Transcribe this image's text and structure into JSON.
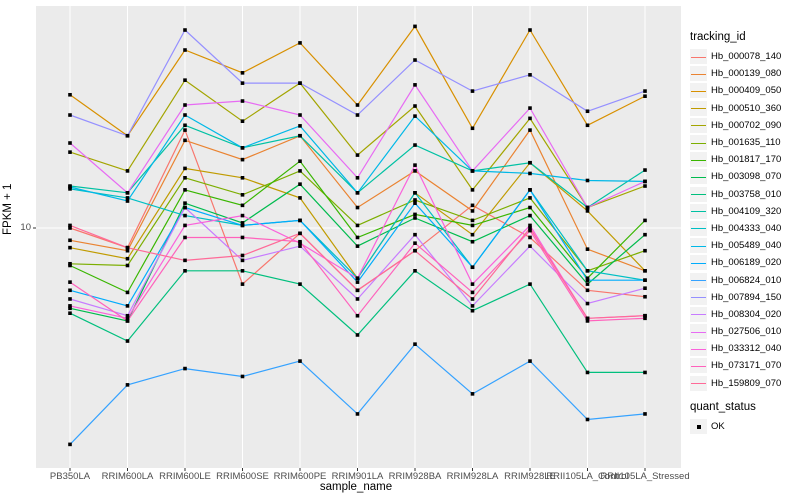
{
  "chart_data": {
    "type": "line",
    "title": "",
    "xlabel": "sample_name",
    "ylabel": "FPKM + 1",
    "y_scale": "log10",
    "y_tick_labels": [
      "10"
    ],
    "ylim": [
      1.6,
      55
    ],
    "grid": true,
    "panel_bg": "#EBEBEB",
    "grid_color": "#FFFFFF",
    "marker": "black-square",
    "marker_color": "#000000",
    "legend_position": "right",
    "categories": [
      "PB350LA",
      "RRIM600LA",
      "RRIM600LE",
      "RRIM600SE",
      "RRIM600PE",
      "RRIM901LA",
      "RRIM928BA",
      "RRIM928LA",
      "RRIM928LE",
      "RRII105LA_Control",
      "RRII105LA_Stressed"
    ],
    "legend": {
      "color_title": "tracking_id",
      "shape_title": "quant_status",
      "shape_items": [
        {
          "label": "OK",
          "marker": "black-square"
        }
      ]
    },
    "series": [
      {
        "name": "Hb_000078_140",
        "color": "#F8766D",
        "values": [
          10.0,
          8.6,
          21.2,
          6.5,
          9.6,
          6.2,
          8.4,
          11.9,
          9.3,
          6.2,
          5.9
        ]
      },
      {
        "name": "Hb_000139_080",
        "color": "#EA8331",
        "values": [
          9.1,
          8.4,
          19.6,
          16.9,
          20.3,
          11.7,
          15.5,
          11.4,
          21.2,
          8.5,
          7.2
        ]
      },
      {
        "name": "Hb_000409_050",
        "color": "#D89000",
        "values": [
          27.8,
          20.3,
          39.2,
          32.9,
          41.4,
          25.7,
          47.0,
          21.5,
          45.7,
          22.0,
          27.5
        ]
      },
      {
        "name": "Hb_000510_360",
        "color": "#C09B00",
        "values": [
          8.6,
          7.9,
          15.8,
          14.7,
          12.6,
          6.8,
          13.1,
          9.5,
          16.5,
          11.4,
          7.2
        ]
      },
      {
        "name": "Hb_000702_090",
        "color": "#A3A500",
        "values": [
          17.9,
          15.5,
          31.1,
          22.7,
          30.4,
          17.5,
          25.5,
          13.4,
          23.2,
          11.7,
          13.8
        ]
      },
      {
        "name": "Hb_001635_110",
        "color": "#7CAE00",
        "values": [
          7.6,
          7.5,
          14.7,
          12.9,
          15.5,
          10.2,
          12.4,
          10.6,
          12.6,
          7.2,
          8.4
        ]
      },
      {
        "name": "Hb_001817_170",
        "color": "#39B600",
        "values": [
          7.5,
          6.1,
          13.4,
          11.9,
          16.7,
          9.3,
          11.1,
          10.2,
          11.7,
          6.8,
          10.6
        ]
      },
      {
        "name": "Hb_003098_070",
        "color": "#00BB4E",
        "values": [
          5.4,
          4.9,
          12.1,
          10.4,
          14.0,
          8.7,
          10.8,
          9.0,
          11.0,
          6.5,
          9.5
        ]
      },
      {
        "name": "Hb_003758_010",
        "color": "#00BF7D",
        "values": [
          5.2,
          4.2,
          7.2,
          7.2,
          6.5,
          4.4,
          7.2,
          5.3,
          6.5,
          3.3,
          3.3
        ]
      },
      {
        "name": "Hb_004109_320",
        "color": "#00C1A3",
        "values": [
          13.8,
          13.1,
          22.0,
          18.5,
          20.3,
          13.1,
          18.9,
          15.5,
          16.5,
          11.7,
          15.6
        ]
      },
      {
        "name": "Hb_004333_040",
        "color": "#00BFC4",
        "values": [
          13.5,
          12.6,
          11.0,
          10.2,
          10.6,
          6.8,
          13.1,
          7.4,
          13.4,
          7.2,
          6.7
        ]
      },
      {
        "name": "Hb_005489_040",
        "color": "#00B8E7",
        "values": [
          13.7,
          12.3,
          23.8,
          18.5,
          21.9,
          13.1,
          23.6,
          15.5,
          15.2,
          14.4,
          14.3
        ]
      },
      {
        "name": "Hb_006189_020",
        "color": "#00ACFC",
        "values": [
          6.2,
          5.5,
          11.7,
          10.2,
          10.6,
          6.6,
          12.1,
          7.4,
          13.4,
          6.7,
          6.7
        ]
      },
      {
        "name": "Hb_006824_010",
        "color": "#35A2FF",
        "values": [
          1.9,
          3.0,
          3.4,
          3.2,
          3.6,
          2.4,
          4.1,
          2.8,
          3.6,
          2.3,
          2.4
        ]
      },
      {
        "name": "Hb_007894_150",
        "color": "#9590FF",
        "values": [
          23.8,
          20.3,
          45.7,
          30.4,
          30.4,
          23.8,
          36.3,
          28.6,
          32.4,
          24.5,
          28.6
        ]
      },
      {
        "name": "Hb_008304_020",
        "color": "#C77CFF",
        "values": [
          5.8,
          5.1,
          11.7,
          7.8,
          8.7,
          5.8,
          9.5,
          5.5,
          8.7,
          5.6,
          6.3
        ]
      },
      {
        "name": "Hb_027506_010",
        "color": "#E76BF3",
        "values": [
          19.2,
          13.1,
          25.7,
          26.5,
          23.8,
          14.7,
          30.0,
          15.5,
          25.1,
          11.7,
          14.3
        ]
      },
      {
        "name": "Hb_033312_040",
        "color": "#FA62DB",
        "values": [
          5.5,
          5.0,
          10.2,
          11.0,
          8.9,
          6.8,
          16.2,
          6.5,
          10.2,
          5.0,
          5.1
        ]
      },
      {
        "name": "Hb_073171_070",
        "color": "#FF62BC",
        "values": [
          6.6,
          4.9,
          9.3,
          9.3,
          9.0,
          5.1,
          8.9,
          6.1,
          9.8,
          4.9,
          5.0
        ]
      },
      {
        "name": "Hb_159809_070",
        "color": "#FF6A98",
        "values": [
          10.2,
          8.6,
          7.8,
          8.1,
          9.6,
          6.2,
          8.4,
          5.8,
          10.0,
          5.0,
          5.1
        ]
      }
    ]
  }
}
